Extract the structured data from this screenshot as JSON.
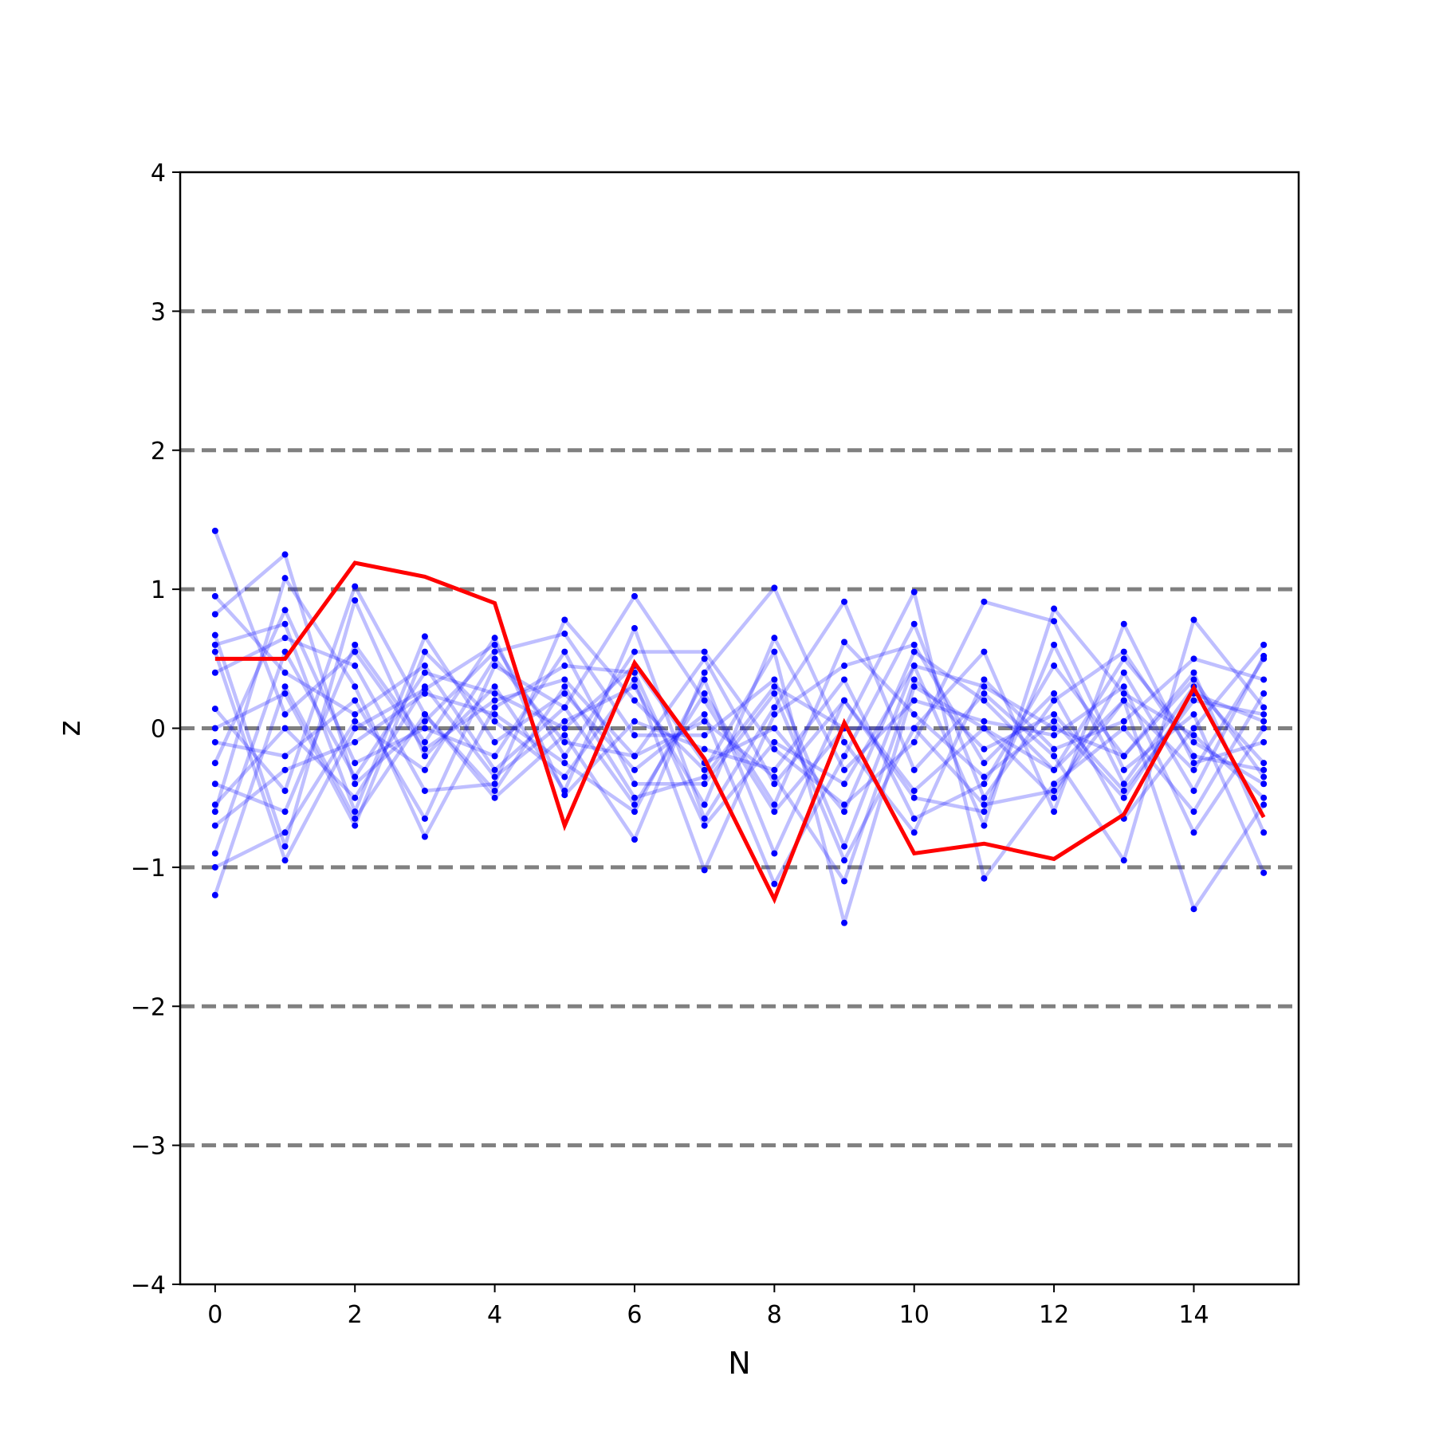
{
  "chart_data": {
    "type": "line",
    "title": "",
    "xlabel": "N",
    "ylabel": "z",
    "xlim": [
      -0.5,
      15.5
    ],
    "ylim": [
      -4,
      4
    ],
    "x_ticks": [
      "0",
      "2",
      "4",
      "6",
      "8",
      "10",
      "12",
      "14"
    ],
    "y_ticks": [
      "−4",
      "−3",
      "−2",
      "−1",
      "0",
      "1",
      "2",
      "3",
      "4"
    ],
    "reference_lines": [
      -3,
      -2,
      -1,
      0,
      1,
      2,
      3
    ],
    "reference_line_style": "dashed",
    "x": [
      0,
      1,
      2,
      3,
      4,
      5,
      6,
      7,
      8,
      9,
      10,
      11,
      12,
      13,
      14,
      15
    ],
    "highlight_series": {
      "values": [
        0.5,
        0.5,
        1.19,
        1.09,
        0.9,
        -0.7,
        0.47,
        -0.22,
        -1.23,
        0.04,
        -0.9,
        -0.83,
        -0.94,
        -0.62,
        0.29,
        -0.64
      ]
    },
    "background_series": [
      {
        "values": [
          1.42,
          0.1,
          0.55,
          -0.15,
          0.2,
          0.35,
          -0.2,
          0.5,
          -0.4,
          0.2,
          -0.45,
          0.0,
          -0.3,
          0.2,
          -0.3,
          0.5
        ]
      },
      {
        "values": [
          0.95,
          0.4,
          0.1,
          0.45,
          -0.3,
          0.15,
          -0.55,
          0.25,
          -0.55,
          0.62,
          0.1,
          -0.35,
          0.05,
          -0.5,
          0.25,
          0.05
        ]
      },
      {
        "values": [
          0.82,
          1.25,
          -0.4,
          0.05,
          0.55,
          0.68,
          -0.05,
          -0.05,
          0.35,
          -0.85,
          0.45,
          -0.7,
          0.86,
          0.25,
          -0.05,
          -0.5
        ]
      },
      {
        "values": [
          0.67,
          -0.85,
          0.92,
          -0.2,
          0.3,
          -0.45,
          0.72,
          -0.65,
          0.15,
          0.91,
          -0.3,
          0.25,
          -0.2,
          -0.95,
          0.78,
          0.15
        ]
      },
      {
        "values": [
          0.6,
          0.75,
          -0.6,
          0.66,
          -0.1,
          0.25,
          -0.3,
          0.1,
          -1.12,
          -0.2,
          0.75,
          -0.5,
          0.2,
          0.55,
          -0.2,
          -0.3
        ]
      },
      {
        "values": [
          0.55,
          -0.95,
          0.0,
          0.28,
          0.6,
          -0.2,
          0.55,
          0.55,
          -0.15,
          -0.55,
          -0.1,
          0.91,
          0.77,
          -0.3,
          0.1,
          -1.04
        ]
      },
      {
        "values": [
          0.4,
          0.65,
          0.45,
          -0.45,
          -0.4,
          0.78,
          0.2,
          -0.3,
          0.55,
          -1.4,
          0.3,
          0.0,
          -0.5,
          0.4,
          -0.45,
          0.52
        ]
      },
      {
        "values": [
          0.14,
          -0.45,
          1.02,
          0.1,
          -0.5,
          -0.05,
          -0.8,
          0.4,
          1.01,
          -0.1,
          -0.75,
          0.35,
          -0.15,
          0.05,
          0.5,
          0.35
        ]
      },
      {
        "values": [
          0.0,
          0.25,
          -0.7,
          0.55,
          0.05,
          -0.35,
          0.35,
          -1.02,
          0.1,
          0.45,
          0.6,
          -0.25,
          0.25,
          -0.65,
          0.0,
          0.6
        ]
      },
      {
        "values": [
          -0.1,
          -0.2,
          0.2,
          -0.65,
          0.45,
          0.15,
          0.95,
          0.2,
          -0.6,
          0.0,
          0.98,
          -1.08,
          -0.4,
          0.0,
          -0.6,
          0.25
        ]
      },
      {
        "values": [
          -0.25,
          0.85,
          -0.25,
          0.0,
          -0.2,
          0.55,
          -0.4,
          -0.4,
          0.25,
          -0.95,
          0.0,
          0.55,
          -0.6,
          0.75,
          -0.25,
          -0.1
        ]
      },
      {
        "values": [
          -0.4,
          -0.6,
          0.6,
          -0.1,
          0.65,
          -0.48,
          0.05,
          -0.15,
          -0.3,
          0.35,
          -0.65,
          -0.4,
          0.45,
          -0.2,
          0.4,
          -0.75
        ]
      },
      {
        "values": [
          -0.55,
          0.0,
          -0.5,
          0.3,
          -0.35,
          0.05,
          0.3,
          -0.55,
          0.65,
          -0.3,
          0.2,
          0.05,
          -0.05,
          0.3,
          -0.75,
          0.0
        ]
      },
      {
        "values": [
          -0.7,
          -0.3,
          -0.1,
          0.25,
          0.1,
          -0.25,
          -0.6,
          0.35,
          -0.9,
          0.2,
          -0.5,
          -0.6,
          0.6,
          -0.4,
          0.3,
          -0.25
        ]
      },
      {
        "values": [
          -0.9,
          0.55,
          -0.35,
          0.4,
          0.25,
          0.0,
          0.45,
          -0.25,
          0.0,
          -0.6,
          0.55,
          0.2,
          -0.3,
          0.5,
          -0.1,
          -0.4
        ]
      },
      {
        "values": [
          -1.0,
          -0.75,
          0.05,
          -0.3,
          0.5,
          -0.1,
          -0.2,
          0.05,
          -0.35,
          -1.1,
          0.35,
          -0.15,
          0.1,
          -0.45,
          0.2,
          0.1
        ]
      },
      {
        "values": [
          -1.2,
          0.3,
          -0.65,
          0.1,
          -0.45,
          0.3,
          -0.5,
          -0.35,
          0.3,
          0.0,
          0.0,
          -0.55,
          -0.45,
          0.2,
          -1.3,
          -0.55
        ]
      },
      {
        "values": [
          -0.6,
          1.08,
          0.3,
          -0.78,
          0.15,
          0.45,
          0.4,
          -0.7,
          -0.1,
          -0.4,
          0.45,
          0.3,
          0.0,
          -0.2,
          0.35,
          -0.35
        ]
      }
    ]
  },
  "colors": {
    "highlight": "#ff0000",
    "background_line": "#0000ff",
    "background_point": "#0000ff",
    "reference_line": "#808080",
    "axes": "#000000"
  }
}
